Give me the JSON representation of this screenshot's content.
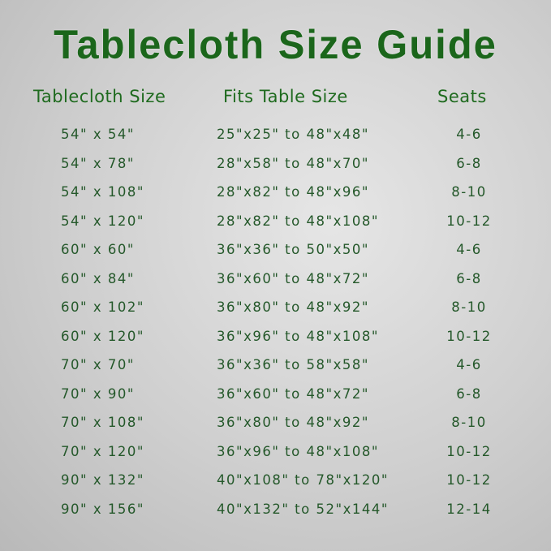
{
  "title": "Tablecloth Size Guide",
  "headers": [
    "Tablecloth Size",
    "Fits Table Size",
    "Seats"
  ],
  "rows": [
    {
      "tablecloth": "54\" x 54\"",
      "fits": "25\"x25\" to 48\"x48\"",
      "seats": "4-6"
    },
    {
      "tablecloth": "54\" x 78\"",
      "fits": "28\"x58\" to 48\"x70\"",
      "seats": "6-8"
    },
    {
      "tablecloth": "54\" x 108\"",
      "fits": "28\"x82\" to 48\"x96\"",
      "seats": "8-10"
    },
    {
      "tablecloth": "54\" x 120\"",
      "fits": "28\"x82\" to 48\"x108\"",
      "seats": "10-12"
    },
    {
      "tablecloth": "60\" x 60\"",
      "fits": "36\"x36\" to 50\"x50\"",
      "seats": "4-6"
    },
    {
      "tablecloth": "60\" x 84\"",
      "fits": "36\"x60\" to 48\"x72\"",
      "seats": "6-8"
    },
    {
      "tablecloth": "60\" x 102\"",
      "fits": "36\"x80\" to 48\"x92\"",
      "seats": "8-10"
    },
    {
      "tablecloth": "60\" x 120\"",
      "fits": "36\"x96\" to 48\"x108\"",
      "seats": "10-12"
    },
    {
      "tablecloth": "70\" x 70\"",
      "fits": "36\"x36\" to 58\"x58\"",
      "seats": "4-6"
    },
    {
      "tablecloth": "70\" x 90\"",
      "fits": "36\"x60\" to 48\"x72\"",
      "seats": "6-8"
    },
    {
      "tablecloth": "70\" x 108\"",
      "fits": "36\"x80\" to 48\"x92\"",
      "seats": "8-10"
    },
    {
      "tablecloth": "70\" x 120\"",
      "fits": "36\"x96\" to 48\"x108\"",
      "seats": "10-12"
    },
    {
      "tablecloth": "90\" x 132\"",
      "fits": "40\"x108\" to 78\"x120\"",
      "seats": "10-12"
    },
    {
      "tablecloth": "90\" x 156\"",
      "fits": "40\"x132\" to 52\"x144\"",
      "seats": "12-14"
    }
  ]
}
